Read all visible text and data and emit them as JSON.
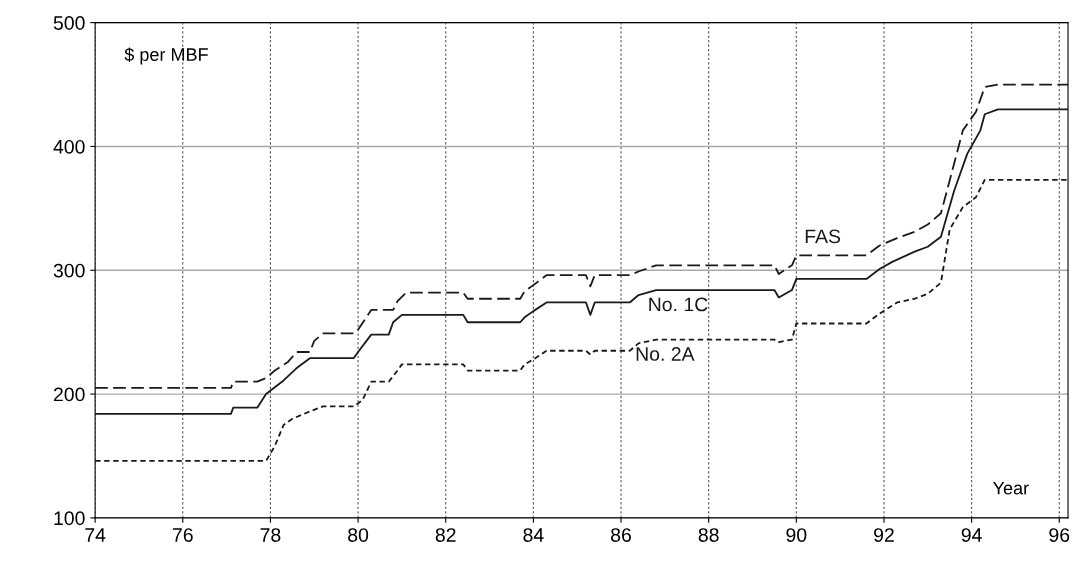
{
  "chart_data": {
    "type": "line",
    "ylabel": "$ per MBF",
    "xlabel": "Year",
    "xlim": [
      74,
      96.2
    ],
    "xticks": [
      74,
      76,
      78,
      80,
      82,
      84,
      86,
      88,
      90,
      92,
      94,
      96
    ],
    "ylim": [
      100,
      500
    ],
    "yticks": [
      100,
      200,
      300,
      400,
      500
    ],
    "grid": true,
    "legend": false,
    "marker": "none",
    "series": [
      {
        "name": "FAS",
        "color": "#1a1a1a",
        "line_style": "dashed",
        "x": [
          74,
          77.1,
          77.15,
          77.7,
          77.9,
          78.1,
          78.4,
          78.6,
          78.9,
          79.0,
          79.2,
          79.9,
          80.0,
          80.3,
          80.8,
          80.9,
          81.1,
          82.4,
          82.5,
          83.7,
          83.8,
          84.0,
          84.3,
          85.2,
          85.3,
          85.4,
          86.2,
          86.4,
          86.8,
          89.5,
          89.6,
          89.9,
          90.0,
          91.6,
          91.9,
          92.3,
          92.7,
          93.0,
          93.3,
          93.6,
          93.8,
          94.1,
          94.3,
          94.6,
          96.2
        ],
        "values": [
          205,
          205,
          210,
          210,
          213,
          219,
          226,
          234,
          234,
          243,
          249,
          249,
          252,
          268,
          268,
          275,
          282,
          282,
          277,
          277,
          283,
          288,
          296,
          296,
          287,
          296,
          296,
          299,
          304,
          304,
          297,
          304,
          312,
          312,
          320,
          326,
          331,
          337,
          346,
          386,
          413,
          428,
          448,
          450,
          450
        ]
      },
      {
        "name": "No. 1C",
        "color": "#1a1a1a",
        "line_style": "solid",
        "x": [
          74,
          77.1,
          77.15,
          77.7,
          77.9,
          78.3,
          78.6,
          78.9,
          79.9,
          80.0,
          80.3,
          80.7,
          80.8,
          81.0,
          82.4,
          82.5,
          83.7,
          83.8,
          84.0,
          84.3,
          85.2,
          85.3,
          85.4,
          86.2,
          86.4,
          86.8,
          89.5,
          89.6,
          89.9,
          90.0,
          91.6,
          91.9,
          92.2,
          92.7,
          93.0,
          93.3,
          93.6,
          93.9,
          94.2,
          94.3,
          94.6,
          96.2
        ],
        "values": [
          184,
          184,
          189,
          189,
          200,
          211,
          221,
          229,
          229,
          234,
          248,
          248,
          258,
          264,
          264,
          258,
          258,
          262,
          267,
          274,
          274,
          264,
          274,
          274,
          280,
          284,
          284,
          278,
          284,
          293,
          293,
          301,
          307,
          315,
          319,
          327,
          364,
          394,
          413,
          426,
          430,
          430
        ]
      },
      {
        "name": "No. 2A",
        "color": "#1a1a1a",
        "line_style": "dotted",
        "x": [
          74,
          77.9,
          78.1,
          78.3,
          78.5,
          78.9,
          79.2,
          79.9,
          80.1,
          80.3,
          80.7,
          80.9,
          81.0,
          82.4,
          82.5,
          83.7,
          83.8,
          84.0,
          84.3,
          85.2,
          85.3,
          85.4,
          86.2,
          86.4,
          86.8,
          89.5,
          89.6,
          89.9,
          90.0,
          91.6,
          91.9,
          92.3,
          92.7,
          93.0,
          93.3,
          93.5,
          93.8,
          94.1,
          94.3,
          94.6,
          96.2
        ],
        "values": [
          146,
          146,
          158,
          175,
          180,
          186,
          190,
          190,
          195,
          210,
          210,
          219,
          224,
          224,
          219,
          219,
          224,
          228,
          235,
          235,
          232,
          235,
          235,
          241,
          244,
          244,
          242,
          244,
          257,
          257,
          265,
          274,
          277,
          281,
          290,
          333,
          351,
          359,
          373,
          373,
          373
        ]
      }
    ]
  }
}
